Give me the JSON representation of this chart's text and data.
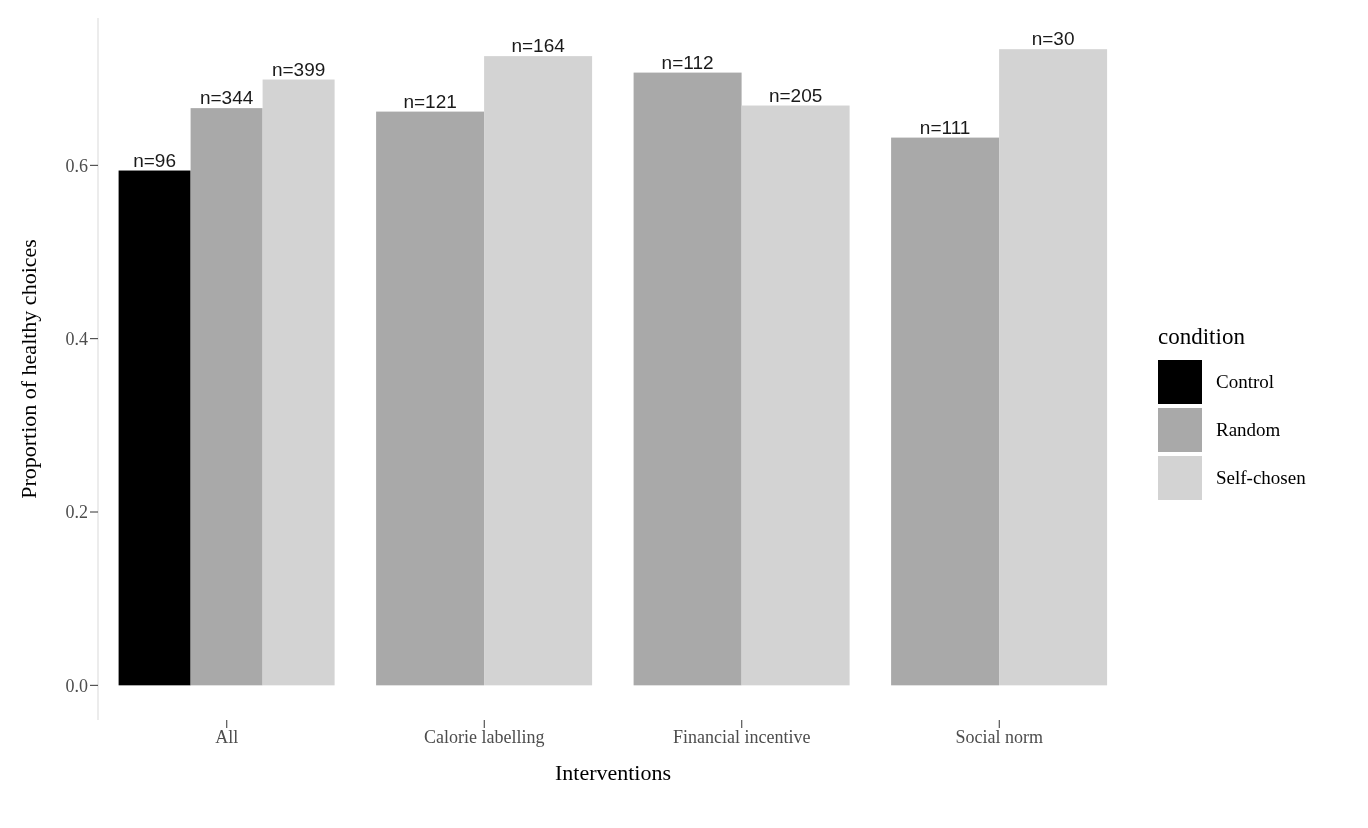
{
  "chart_data": {
    "type": "bar",
    "xlabel": "Interventions",
    "ylabel": "Proportion of healthy choices",
    "legend_title": "condition",
    "legend": "right",
    "categories": [
      "All",
      "Calorie labelling",
      "Financial incentive",
      "Social norm"
    ],
    "series": [
      {
        "name": "Control",
        "color": "#000000",
        "values": [
          0.594,
          null,
          null,
          null
        ]
      },
      {
        "name": "Random",
        "color": "#a9a9a9",
        "values": [
          0.666,
          0.662,
          0.707,
          0.632
        ]
      },
      {
        "name": "Self-chosen",
        "color": "#d3d3d3",
        "values": [
          0.699,
          0.726,
          0.669,
          0.734
        ]
      }
    ],
    "annotations": [
      "n=96",
      "n=344",
      "n=399",
      "n=121",
      "n=164",
      "n=112",
      "n=205",
      "n=111",
      "n=30"
    ],
    "ylim": [
      -0.04,
      0.77
    ],
    "yticks": [
      {
        "value": 0,
        "label": "0.0"
      },
      {
        "value": 0.2,
        "label": "0.2"
      },
      {
        "value": 0.4,
        "label": "0.4"
      },
      {
        "value": 0.6,
        "label": "0.6"
      }
    ]
  }
}
